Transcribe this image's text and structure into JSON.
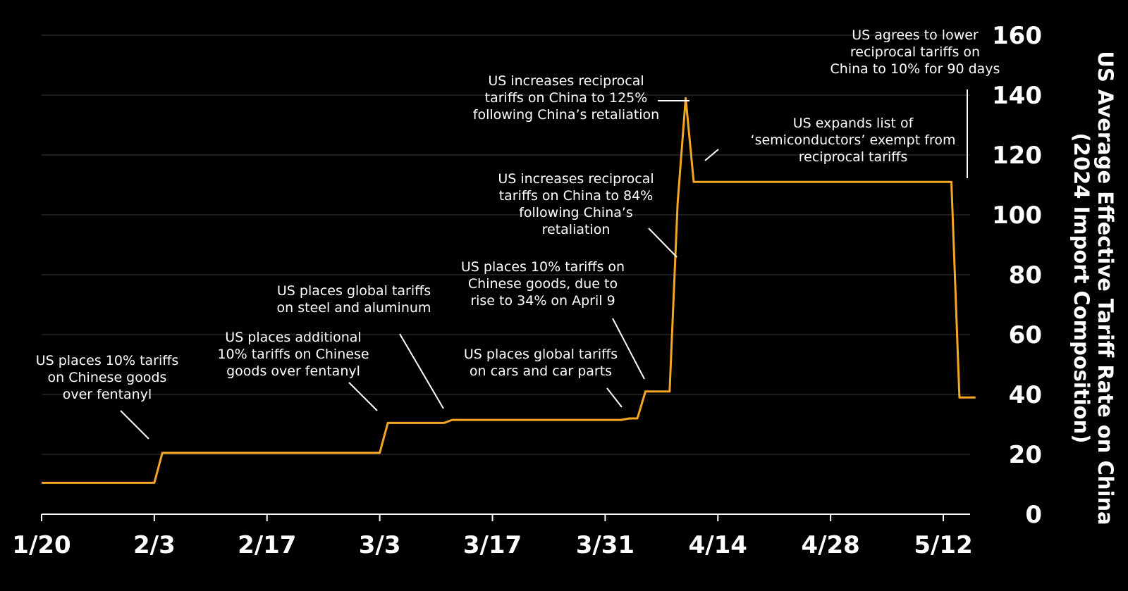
{
  "chart_data": {
    "type": "line",
    "title": "",
    "xlabel": "",
    "ylabel": "US Average Effective Tariff Rate on China (2024 Import Composition)",
    "ylabel_lines": [
      "US Average Effective Tariff Rate on China",
      "(2024 Import Composition)"
    ],
    "x_start": "2025-01-20",
    "x_ticks": [
      "1/20",
      "2/3",
      "2/17",
      "3/3",
      "3/17",
      "3/31",
      "4/14",
      "4/28",
      "5/12"
    ],
    "ylim": [
      0,
      160
    ],
    "y_ticks": [
      "0",
      "20",
      "40",
      "60",
      "80",
      "100",
      "120",
      "140",
      "160"
    ],
    "y_tick_values": [
      0,
      20,
      40,
      60,
      80,
      100,
      120,
      140,
      160
    ],
    "grid": true,
    "line_color": "#f5a623",
    "series": [
      {
        "points": [
          [
            "2025-01-20",
            10.5
          ],
          [
            "2025-02-03",
            10.5
          ],
          [
            "2025-02-04",
            20.5
          ],
          [
            "2025-03-03",
            20.5
          ],
          [
            "2025-03-04",
            30.5
          ],
          [
            "2025-03-11",
            30.5
          ],
          [
            "2025-03-12",
            31.5
          ],
          [
            "2025-04-02",
            31.5
          ],
          [
            "2025-04-03",
            32.0
          ],
          [
            "2025-04-04",
            32.0
          ],
          [
            "2025-04-05",
            41.0
          ],
          [
            "2025-04-08",
            41.0
          ],
          [
            "2025-04-09",
            104.0
          ],
          [
            "2025-04-10",
            139.0
          ],
          [
            "2025-04-11",
            111.0
          ],
          [
            "2025-05-13",
            111.0
          ],
          [
            "2025-05-14",
            39.0
          ],
          [
            "2025-05-16",
            39.0
          ]
        ]
      }
    ],
    "annotations": [
      {
        "lines": [
          "US places 10% tariffs",
          "on Chinese goods",
          "over fentanyl"
        ]
      },
      {
        "lines": [
          "US places additional",
          "10% tariffs on Chinese",
          "goods over fentanyl"
        ]
      },
      {
        "lines": [
          "US places global tariffs",
          "on steel and aluminum"
        ]
      },
      {
        "lines": [
          "US places global tariffs",
          "on cars and car parts"
        ]
      },
      {
        "lines": [
          "US places 10% tariffs on",
          "Chinese goods, due to",
          "rise to 34% on April 9"
        ]
      },
      {
        "lines": [
          "US increases reciprocal",
          "tariffs on China to 84%",
          "following China’s",
          "retaliation"
        ]
      },
      {
        "lines": [
          "US increases reciprocal",
          "tariffs on China to 125%",
          "following China’s retaliation"
        ]
      },
      {
        "lines": [
          "US expands list of",
          "‘semiconductors’ exempt from",
          "reciprocal tariffs"
        ]
      },
      {
        "lines": [
          "US agrees to lower",
          "reciprocal tariffs on",
          "China to 10% for 90 days"
        ]
      }
    ]
  }
}
